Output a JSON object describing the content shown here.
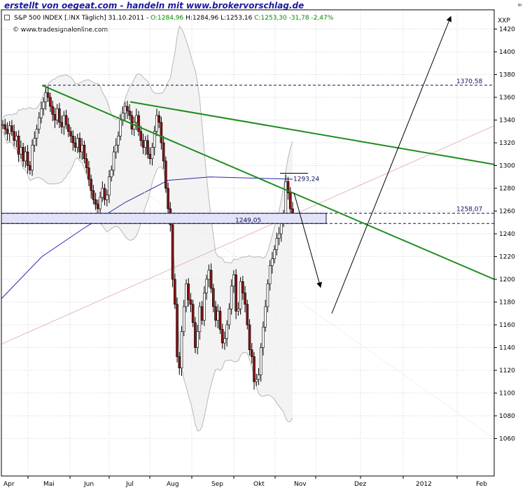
{
  "banner": {
    "text": "erstellt von oegeat.com - handeln mit www.brokervorschlag.de",
    "color": "#1a1aa0"
  },
  "info": {
    "instrument": "S&P 500 INDEX [.INX Täglich] 31.10.2011 -",
    "open": "O:1284,96",
    "high": "H:1284,96",
    "low": "L:1253,16",
    "close_change": "C:1253,30 -31,78 -2,47%"
  },
  "website": "www.tradesignalonline.com",
  "unit_label": "XXP",
  "corner_label": "In",
  "colors": {
    "trendline": "#1e8c1e",
    "moving_average": "#2a2aaa",
    "candle_body": "#8b1414",
    "bollinger": "#b8b8b8",
    "level_line": "#101060",
    "support_zone_fill": "#e3e3f7"
  },
  "chart_data": {
    "type": "candlestick",
    "title": "S&P 500 INDEX [.INX Täglich]",
    "ylim": [
      1050,
      1440
    ],
    "yticks": [
      1060,
      1080,
      1100,
      1120,
      1140,
      1160,
      1180,
      1200,
      1220,
      1240,
      1260,
      1280,
      1300,
      1320,
      1340,
      1360,
      1380,
      1400,
      1420
    ],
    "x_tick_labels": [
      "Apr",
      "Mai",
      "Jun",
      "Jul",
      "Aug",
      "Sep",
      "Okt",
      "Nov",
      "Dez",
      "2012",
      "Feb"
    ],
    "grid": true,
    "closes": [
      [
        1336,
        1332,
        1328,
        1335,
        1330,
        1322,
        1326,
        1310,
        1316,
        1304,
        1312,
        1300,
        1296,
        1318,
        1324,
        1332,
        1342,
        1350,
        1356,
        1364
      ],
      [
        1360,
        1352,
        1345,
        1340,
        1350,
        1338,
        1334,
        1344,
        1336,
        1330,
        1326,
        1320,
        1316,
        1324,
        1312,
        1318,
        1306,
        1298,
        1288,
        1278,
        1270,
        1266,
        1262,
        1272,
        1280,
        1270,
        1274,
        1290,
        1296,
        1312
      ],
      [
        1318,
        1326,
        1340,
        1346,
        1352,
        1348,
        1344,
        1332,
        1338,
        1344,
        1330,
        1322,
        1316,
        1322,
        1310,
        1306,
        1316,
        1330,
        1344,
        1338,
        1320,
        1304,
        1280,
        1262,
        1248
      ],
      [
        1200,
        1178,
        1132,
        1122,
        1154,
        1176,
        1196,
        1182,
        1178,
        1162,
        1140,
        1154,
        1176,
        1164,
        1188,
        1200,
        1208,
        1192,
        1176,
        1164,
        1172,
        1156,
        1144,
        1148,
        1160,
        1174,
        1194,
        1204
      ],
      [
        1172,
        1174,
        1198,
        1188,
        1178,
        1160,
        1138,
        1132,
        1110,
        1112,
        1116,
        1140,
        1158,
        1176,
        1196,
        1212,
        1218,
        1226,
        1236,
        1240,
        1250,
        1256,
        1286,
        1276,
        1262,
        1253
      ]
    ],
    "levels": [
      {
        "label": "1370,58",
        "value": 1370.58
      },
      {
        "label": "1293,24",
        "value": 1293.24
      },
      {
        "label": "1258,07",
        "value": 1258.07
      },
      {
        "label": "1249,05",
        "value": 1249.05
      }
    ]
  }
}
